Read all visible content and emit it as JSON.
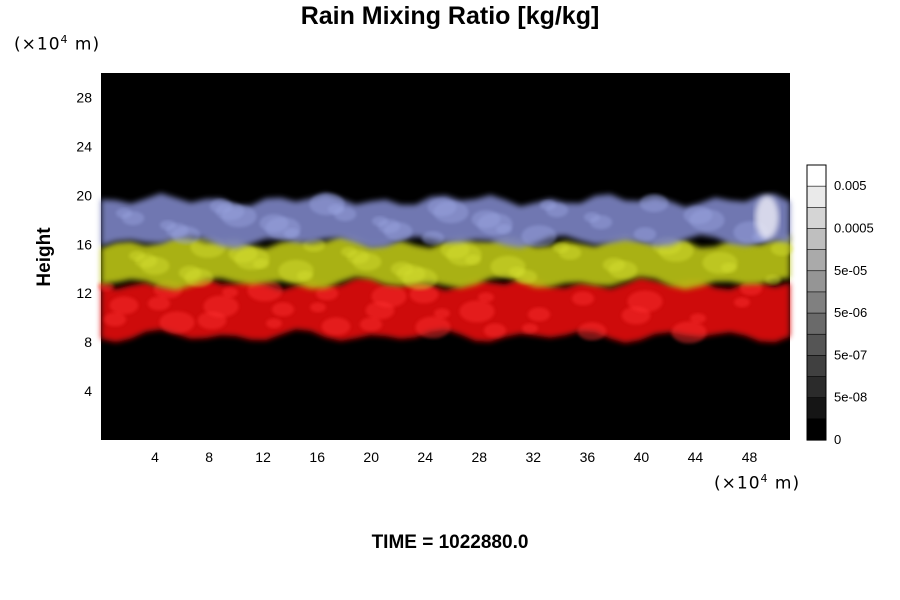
{
  "chart_data": {
    "type": "heatmap",
    "title": "Rain Mixing Ratio [kg/kg]",
    "xlabel": "",
    "ylabel": "Height",
    "x_unit_prefix": "(×10",
    "x_unit_exp": "4",
    "x_unit_suffix": " m)",
    "y_unit_prefix": "(×10",
    "y_unit_exp": "4",
    "y_unit_suffix": " m)",
    "xlim": [
      0,
      51
    ],
    "ylim": [
      0,
      30
    ],
    "x_ticks": [
      "4",
      "8",
      "12",
      "16",
      "20",
      "24",
      "28",
      "32",
      "36",
      "40",
      "44",
      "48"
    ],
    "y_ticks": [
      "4",
      "8",
      "12",
      "16",
      "20",
      "24",
      "28"
    ],
    "bands": [
      {
        "name": "red",
        "color": "#e01010",
        "y_bottom": 8.5,
        "y_top": 12.8
      },
      {
        "name": "yellow",
        "color": "#b8c012",
        "y_bottom": 12.8,
        "y_top": 16.2
      },
      {
        "name": "blue",
        "color": "#7a82c0",
        "y_bottom": 16.2,
        "y_top": 19.6
      }
    ],
    "colorbar": {
      "labels": [
        "0.005",
        "0.0005",
        "5e-05",
        "5e-06",
        "5e-07",
        "5e-08",
        "0"
      ],
      "levels": 13
    },
    "background_color": "#000000"
  },
  "footer": {
    "time_text": "TIME = 1022880.0"
  }
}
